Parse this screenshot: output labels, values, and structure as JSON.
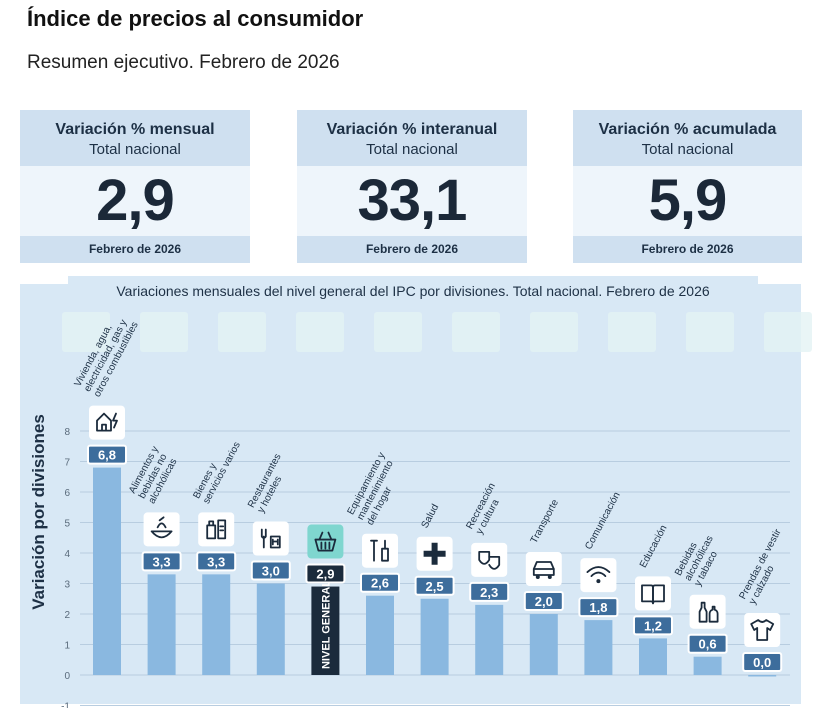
{
  "header": {
    "title": "Índice de precios al consumidor",
    "subtitle": "Resumen ejecutivo. Febrero de 2026"
  },
  "cards": [
    {
      "label": "Variación % mensual",
      "sub": "Total nacional",
      "value": "2,9",
      "period": "Febrero de 2026"
    },
    {
      "label": "Variación % interanual",
      "sub": "Total nacional",
      "value": "33,1",
      "period": "Febrero de 2026"
    },
    {
      "label": "Variación % acumulada",
      "sub": "Total nacional",
      "value": "5,9",
      "period": "Febrero de 2026"
    }
  ],
  "colors": {
    "bar": "#8ab8e0",
    "general_bar": "#1b2b3c",
    "label_bg": "#3d6d9c",
    "icon_highlight": "#7fd6cf",
    "panel": "#d8e8f5"
  },
  "chart_data": {
    "type": "bar",
    "title": "Variaciones mensuales del nivel general del IPC por divisiones. Total nacional. Febrero de 2026",
    "ylabel": "Variación por divisiones",
    "xlabel": "",
    "ylim": [
      -1,
      8
    ],
    "yticks": [
      -1,
      0,
      1,
      2,
      3,
      4,
      5,
      6,
      7,
      8
    ],
    "grid": true,
    "categories": [
      {
        "name": "Vivienda, agua, electricidad, gas y otros combustibles",
        "lines": [
          "Vivienda, agua,",
          "electricidad, gas y",
          "otros combustibles"
        ],
        "value": 6.8,
        "label": "6,8",
        "icon": "house-energy-icon"
      },
      {
        "name": "Alimentos y bebidas no alcohólicas",
        "lines": [
          "Alimentos y",
          "bebidas no",
          "alcohólicas"
        ],
        "value": 3.3,
        "label": "3,3",
        "icon": "food-bowl-icon"
      },
      {
        "name": "Bienes y servicios varios",
        "lines": [
          "Bienes y",
          "servicios varios"
        ],
        "value": 3.3,
        "label": "3,3",
        "icon": "toiletries-icon"
      },
      {
        "name": "Restaurantes y hoteles",
        "lines": [
          "Restaurantes",
          "y hoteles"
        ],
        "value": 3.0,
        "label": "3,0",
        "icon": "cutlery-hotel-icon"
      },
      {
        "name": "NIVEL GENERAL",
        "lines": [],
        "value": 2.9,
        "label": "2,9",
        "icon": "basket-icon",
        "highlight": true,
        "bar_text": "NIVEL GENERAL"
      },
      {
        "name": "Equipamiento y mantenimiento del hogar",
        "lines": [
          "Equipamiento y",
          "mantenimiento",
          "del hogar"
        ],
        "value": 2.6,
        "label": "2,6",
        "icon": "tools-icon"
      },
      {
        "name": "Salud",
        "lines": [
          "Salud"
        ],
        "value": 2.5,
        "label": "2,5",
        "icon": "health-cross-icon"
      },
      {
        "name": "Recreación y cultura",
        "lines": [
          "Recreación",
          "y cultura"
        ],
        "value": 2.3,
        "label": "2,3",
        "icon": "theater-masks-icon"
      },
      {
        "name": "Transporte",
        "lines": [
          "Transporte"
        ],
        "value": 2.0,
        "label": "2,0",
        "icon": "car-icon"
      },
      {
        "name": "Comunicación",
        "lines": [
          "Comunicación"
        ],
        "value": 1.8,
        "label": "1,8",
        "icon": "wifi-icon"
      },
      {
        "name": "Educación",
        "lines": [
          "Educación"
        ],
        "value": 1.2,
        "label": "1,2",
        "icon": "book-icon"
      },
      {
        "name": "Bebidas alcohólicas y tabaco",
        "lines": [
          "Bebidas",
          "alcohólicas",
          "y tabaco"
        ],
        "value": 0.6,
        "label": "0,6",
        "icon": "bottles-icon"
      },
      {
        "name": "Prendas de vestir y calzado",
        "lines": [
          "Prendas de vestir",
          "y calzado"
        ],
        "value": 0.0,
        "label": "0,0",
        "icon": "tshirt-icon"
      }
    ]
  }
}
